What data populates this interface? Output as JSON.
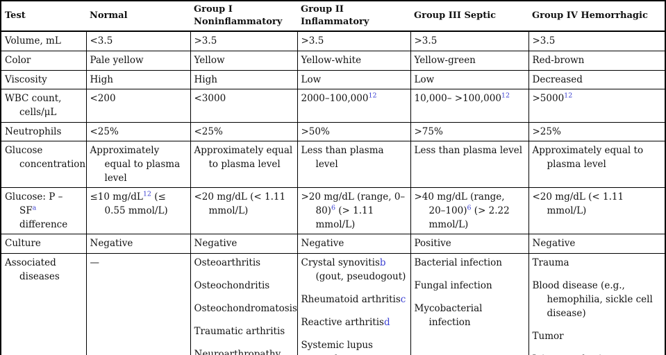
{
  "colors": {
    "link": "#3a3fd1",
    "border": "#000000",
    "text": "#111111",
    "background": "#ffffff"
  },
  "table": {
    "columns": [
      {
        "label": "Test"
      },
      {
        "label": "Normal"
      },
      {
        "label": "Group I Noninflammatory"
      },
      {
        "label": "Group II Inflammatory"
      },
      {
        "label": "Group III Septic"
      },
      {
        "label": "Group IV Hemorrhagic"
      }
    ],
    "rows": [
      {
        "id": "volume",
        "h": [
          [
            {
              "t": "Volume, mL"
            }
          ]
        ],
        "c": [
          [
            [
              {
                "t": "<3.5"
              }
            ]
          ],
          [
            [
              {
                "t": ">3.5"
              }
            ]
          ],
          [
            [
              {
                "t": ">3.5"
              }
            ]
          ],
          [
            [
              {
                "t": ">3.5"
              }
            ]
          ],
          [
            [
              {
                "t": ">3.5"
              }
            ]
          ]
        ]
      },
      {
        "id": "color",
        "h": [
          [
            {
              "t": "Color"
            }
          ]
        ],
        "c": [
          [
            [
              {
                "t": "Pale yellow"
              }
            ]
          ],
          [
            [
              {
                "t": "Yellow"
              }
            ]
          ],
          [
            [
              {
                "t": "Yellow-white"
              }
            ]
          ],
          [
            [
              {
                "t": "Yellow-green"
              }
            ]
          ],
          [
            [
              {
                "t": "Red-brown"
              }
            ]
          ]
        ]
      },
      {
        "id": "viscosity",
        "h": [
          [
            {
              "t": "Viscosity"
            }
          ]
        ],
        "c": [
          [
            [
              {
                "t": "High"
              }
            ]
          ],
          [
            [
              {
                "t": "High"
              }
            ]
          ],
          [
            [
              {
                "t": "Low"
              }
            ]
          ],
          [
            [
              {
                "t": "Low"
              }
            ]
          ],
          [
            [
              {
                "t": "Decreased"
              }
            ]
          ]
        ]
      },
      {
        "id": "wbc-count",
        "h": [
          [
            {
              "t": "WBC count, cells/μL"
            }
          ]
        ],
        "c": [
          [
            [
              {
                "t": "<200"
              }
            ]
          ],
          [
            [
              {
                "t": "<3000"
              }
            ]
          ],
          [
            [
              {
                "t": "2000–100,000"
              },
              {
                "t": "12",
                "k": "sup"
              }
            ]
          ],
          [
            [
              {
                "t": "10,000– >100,000"
              },
              {
                "t": "12",
                "k": "sup"
              }
            ]
          ],
          [
            [
              {
                "t": ">5000"
              },
              {
                "t": "12",
                "k": "sup"
              }
            ]
          ]
        ]
      },
      {
        "id": "neutrophils",
        "h": [
          [
            {
              "t": "Neutrophils"
            }
          ]
        ],
        "c": [
          [
            [
              {
                "t": "<25%"
              }
            ]
          ],
          [
            [
              {
                "t": "<25%"
              }
            ]
          ],
          [
            [
              {
                "t": ">50%"
              }
            ]
          ],
          [
            [
              {
                "t": ">75%"
              }
            ]
          ],
          [
            [
              {
                "t": ">25%"
              }
            ]
          ]
        ]
      },
      {
        "id": "glucose-concentration",
        "h": [
          [
            {
              "t": "Glucose concentration"
            }
          ]
        ],
        "c": [
          [
            [
              {
                "t": "Approximately equal to plasma level"
              }
            ]
          ],
          [
            [
              {
                "t": "Approximately equal to plasma level"
              }
            ]
          ],
          [
            [
              {
                "t": "Less than plasma level"
              }
            ]
          ],
          [
            [
              {
                "t": "Less than plasma level"
              }
            ]
          ],
          [
            [
              {
                "t": "Approximately equal to plasma level"
              }
            ]
          ]
        ]
      },
      {
        "id": "glucose-p-sf-difference",
        "h": [
          [
            {
              "t": "Glucose: P – SF"
            },
            {
              "t": "a",
              "k": "sup"
            },
            {
              "t": " difference"
            }
          ]
        ],
        "c": [
          [
            [
              {
                "t": "≤10 mg/dL"
              },
              {
                "t": "12",
                "k": "sup"
              },
              {
                "t": " (≤ 0.55 mmol/L)"
              }
            ]
          ],
          [
            [
              {
                "t": "<20 mg/dL (< 1.11 mmol/L)"
              }
            ]
          ],
          [
            [
              {
                "t": ">20 mg/dL (range, 0–80)"
              },
              {
                "t": "6",
                "k": "sup"
              },
              {
                "t": " (> 1.11 mmol/L)"
              }
            ]
          ],
          [
            [
              {
                "t": ">40 mg/dL (range, 20–100)"
              },
              {
                "t": "6",
                "k": "sup"
              },
              {
                "t": " (> 2.22 mmol/L)"
              }
            ]
          ],
          [
            [
              {
                "t": "<20 mg/dL (< 1.11 mmol/L)"
              }
            ]
          ]
        ]
      },
      {
        "id": "culture",
        "h": [
          [
            {
              "t": "Culture"
            }
          ]
        ],
        "c": [
          [
            [
              {
                "t": "Negative"
              }
            ]
          ],
          [
            [
              {
                "t": "Negative"
              }
            ]
          ],
          [
            [
              {
                "t": "Negative"
              }
            ]
          ],
          [
            [
              {
                "t": "Positive"
              }
            ]
          ],
          [
            [
              {
                "t": "Negative"
              }
            ]
          ]
        ]
      },
      {
        "id": "associated-diseases",
        "h": [
          [
            {
              "t": "Associated diseases"
            }
          ]
        ],
        "c": [
          [
            [
              {
                "t": "—"
              }
            ]
          ],
          [
            [
              {
                "t": "Osteoarthritis"
              }
            ],
            [
              {
                "t": "Osteochondritis"
              }
            ],
            [
              {
                "t": "Osteochondromatosis"
              }
            ],
            [
              {
                "t": "Traumatic arthritis"
              }
            ],
            [
              {
                "t": "Neuroarthropathy"
              }
            ]
          ],
          [
            [
              {
                "t": "Crystal synovitis"
              },
              {
                "t": "b",
                "k": "link"
              },
              {
                "t": " (gout, pseudogout)"
              }
            ],
            [
              {
                "t": "Rheumatoid arthritis"
              },
              {
                "t": "c",
                "k": "link"
              }
            ],
            [
              {
                "t": "Reactive arthritis"
              },
              {
                "t": "d",
                "k": "link"
              }
            ],
            [
              {
                "t": "Systemic lupus erythematosus"
              },
              {
                "t": "e",
                "k": "link"
              }
            ]
          ],
          [
            [
              {
                "t": "Bacterial infection"
              }
            ],
            [
              {
                "t": "Fungal infection"
              }
            ],
            [
              {
                "t": "Mycobacterial infection"
              }
            ]
          ],
          [
            [
              {
                "t": "Trauma"
              }
            ],
            [
              {
                "t": "Blood disease (e.g., hemophilia, sickle cell disease)"
              }
            ],
            [
              {
                "t": "Tumor"
              }
            ],
            [
              {
                "t": "Joint prosthesis"
              }
            ]
          ]
        ]
      }
    ]
  }
}
